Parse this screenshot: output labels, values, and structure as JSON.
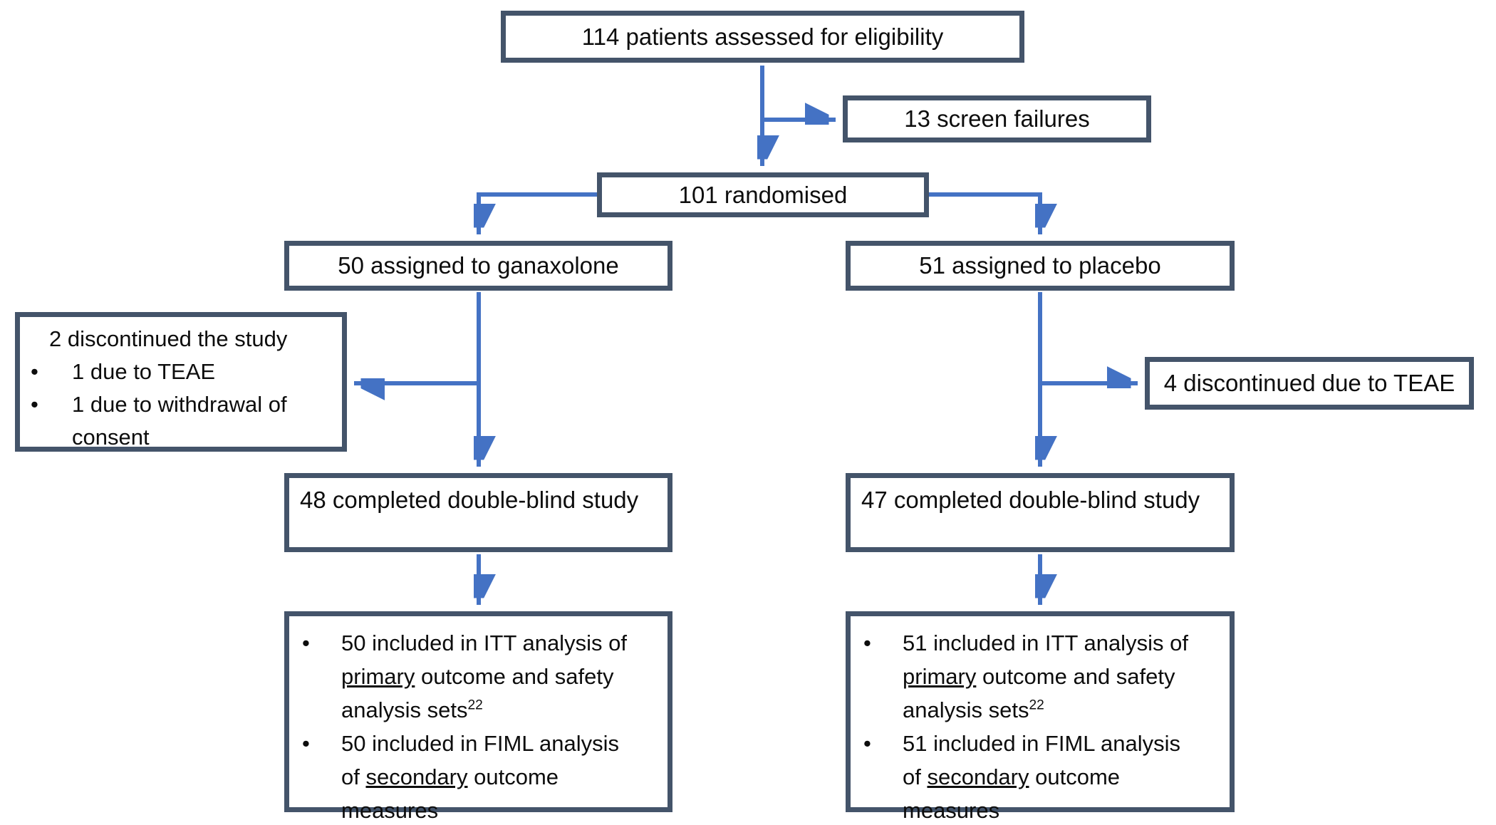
{
  "diagram": {
    "title_hint": "CONSORT-style patient flow diagram",
    "colors": {
      "border": "#44546A",
      "arrow": "#4472C4",
      "text": "#0d0d0d",
      "background": "#ffffff"
    },
    "bullet_glyph": "•",
    "boxes": {
      "eligibility": {
        "label": "114 patients assessed for eligibility"
      },
      "screen_failures": {
        "label": "13 screen failures"
      },
      "randomised": {
        "label": "101 randomised"
      },
      "assigned_ganaxolone": {
        "label": "50 assigned to ganaxolone"
      },
      "assigned_placebo": {
        "label": "51 assigned to placebo"
      },
      "discontinued_ganaxolone": {
        "heading": "2 discontinued the study",
        "items": [
          {
            "segments": [
              {
                "text": "1 due to TEAE"
              }
            ]
          },
          {
            "segments": [
              {
                "text": "1 due to withdrawal of",
                "break": true
              },
              {
                "text": "consent"
              }
            ]
          }
        ]
      },
      "discontinued_placebo": {
        "label": "4 discontinued due to TEAE"
      },
      "completed_ganaxolone": {
        "label": "48 completed double-blind study"
      },
      "completed_placebo": {
        "label": "47 completed double-blind study"
      },
      "analysis_ganaxolone": {
        "items": [
          {
            "segments": [
              {
                "text": "50 included in ITT analysis of",
                "break": true
              },
              {
                "text": "primary",
                "underline": true
              },
              {
                "text": " outcome and safety",
                "break": true
              },
              {
                "text": "analysis sets"
              },
              {
                "text": "22",
                "sup": true
              }
            ]
          },
          {
            "segments": [
              {
                "text": "50 included in FIML analysis",
                "break": true
              },
              {
                "text": "of "
              },
              {
                "text": "secondary",
                "underline": true
              },
              {
                "text": " outcome",
                "break": true
              },
              {
                "text": "measures"
              }
            ]
          }
        ]
      },
      "analysis_placebo": {
        "items": [
          {
            "segments": [
              {
                "text": "51 included in ITT analysis of",
                "break": true
              },
              {
                "text": "primary",
                "underline": true
              },
              {
                "text": " outcome and safety",
                "break": true
              },
              {
                "text": "analysis sets"
              },
              {
                "text": "22",
                "sup": true
              }
            ]
          },
          {
            "segments": [
              {
                "text": "51 included in FIML analysis",
                "break": true
              },
              {
                "text": "of "
              },
              {
                "text": "secondary",
                "underline": true
              },
              {
                "text": " outcome",
                "break": true
              },
              {
                "text": "measures"
              }
            ]
          }
        ]
      }
    }
  }
}
